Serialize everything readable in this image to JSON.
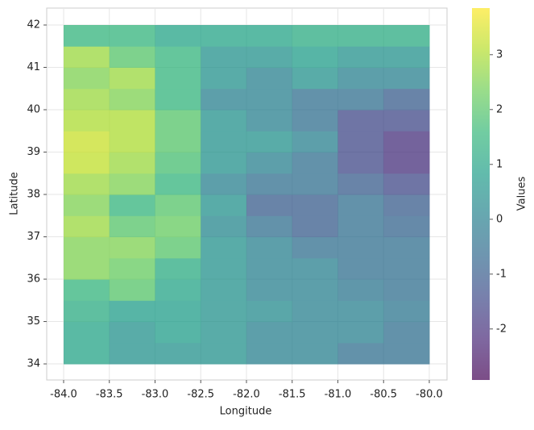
{
  "chart_data": {
    "type": "heatmap",
    "xlabel": "Longitude",
    "ylabel": "Latitude",
    "colorbar_label": "Values",
    "xbins": [
      -84,
      -83.5,
      -83,
      -82.5,
      -82,
      -81.5,
      -81,
      -80.5,
      -80
    ],
    "ybins": [
      34,
      34.5,
      35,
      35.5,
      36,
      36.5,
      37,
      37.5,
      38,
      38.5,
      39,
      39.5,
      40,
      40.5,
      41,
      41.5,
      42
    ],
    "values": [
      [
        1.0,
        0.5,
        0.5,
        0.5,
        0,
        0,
        -0.5,
        -0.5
      ],
      [
        1.0,
        0.5,
        0.8,
        0.5,
        0,
        0,
        0,
        -0.5
      ],
      [
        1.2,
        0.8,
        0.8,
        0.5,
        0.3,
        0,
        0,
        -0.3
      ],
      [
        1.5,
        2.0,
        1.0,
        0.5,
        0,
        0,
        -0.3,
        -0.5
      ],
      [
        2.5,
        2.2,
        1.2,
        0.5,
        0,
        0,
        -0.5,
        -0.5
      ],
      [
        2.5,
        2.5,
        2.0,
        0.5,
        0,
        -0.5,
        -0.5,
        -0.5
      ],
      [
        2.8,
        2.0,
        2.2,
        0.2,
        -0.5,
        -1.0,
        -0.5,
        -0.8
      ],
      [
        2.5,
        1.5,
        2.0,
        0.5,
        -1.0,
        -1.0,
        -0.5,
        -1.0
      ],
      [
        2.8,
        2.5,
        1.5,
        0,
        -0.5,
        -0.5,
        -1.0,
        -1.5
      ],
      [
        3.2,
        2.8,
        1.8,
        0.5,
        0,
        -0.5,
        -1.5,
        -2.0
      ],
      [
        3.3,
        3.0,
        2.0,
        0.5,
        0.5,
        0,
        -1.5,
        -2.0
      ],
      [
        3.0,
        3.0,
        2.0,
        0.5,
        0,
        -0.5,
        -1.5,
        -1.5
      ],
      [
        2.8,
        2.5,
        1.5,
        0,
        0,
        -0.5,
        -0.5,
        -1.0
      ],
      [
        2.5,
        2.8,
        1.5,
        0.5,
        0,
        0.5,
        0,
        0
      ],
      [
        2.8,
        2.0,
        1.5,
        0.5,
        0.5,
        0.8,
        0.5,
        0.5
      ],
      [
        1.5,
        1.5,
        1.0,
        1.0,
        1.0,
        1.2,
        1.2,
        1.2
      ]
    ],
    "xlim": [
      -84.185,
      -79.806
    ],
    "ylim": [
      33.62,
      42.4
    ],
    "xticks": [
      {
        "value": -84,
        "label": "-84.0"
      },
      {
        "value": -83.5,
        "label": "-83.5"
      },
      {
        "value": -83,
        "label": "-83.0"
      },
      {
        "value": -82.5,
        "label": "-82.5"
      },
      {
        "value": -82,
        "label": "-82.0"
      },
      {
        "value": -81.5,
        "label": "-81.5"
      },
      {
        "value": -81,
        "label": "-81.0"
      },
      {
        "value": -80.5,
        "label": "-80.5"
      },
      {
        "value": -80,
        "label": "-80.0"
      }
    ],
    "yticks": [
      34,
      35,
      36,
      37,
      38,
      39,
      40,
      41,
      42
    ],
    "clim": [
      -2.93,
      3.85
    ],
    "cticks": [
      -2,
      -1,
      0,
      1,
      2,
      3
    ],
    "colormap": "viridis",
    "grid": true
  }
}
